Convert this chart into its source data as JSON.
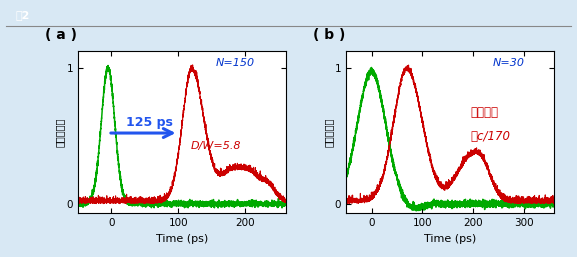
{
  "fig_label": "図2",
  "panel_a_label": "( a )",
  "panel_b_label": "( b )",
  "panel_a_annotation1": "125 ps",
  "panel_a_annotation2": "D/W=5.8",
  "panel_a_N": "N=150",
  "panel_b_N": "N=30",
  "panel_b_line1": "伝播速度",
  "panel_b_line2": "＝c/170",
  "xlabel": "Time (ps)",
  "ylabel": "光透過強度",
  "green_color": "#00aa00",
  "red_color": "#cc0000",
  "blue_color": "#0033cc",
  "arrow_color": "#2255ee",
  "header_bg": "#003399",
  "header_text": "#ffffff",
  "outer_bg": "#d8e8f4",
  "plot_bg": "#ffffff",
  "panel_a_xlim": [
    -50,
    260
  ],
  "panel_a_ylim": [
    -0.07,
    1.12
  ],
  "panel_b_xlim": [
    -50,
    360
  ],
  "panel_b_ylim": [
    -0.07,
    1.12
  ]
}
